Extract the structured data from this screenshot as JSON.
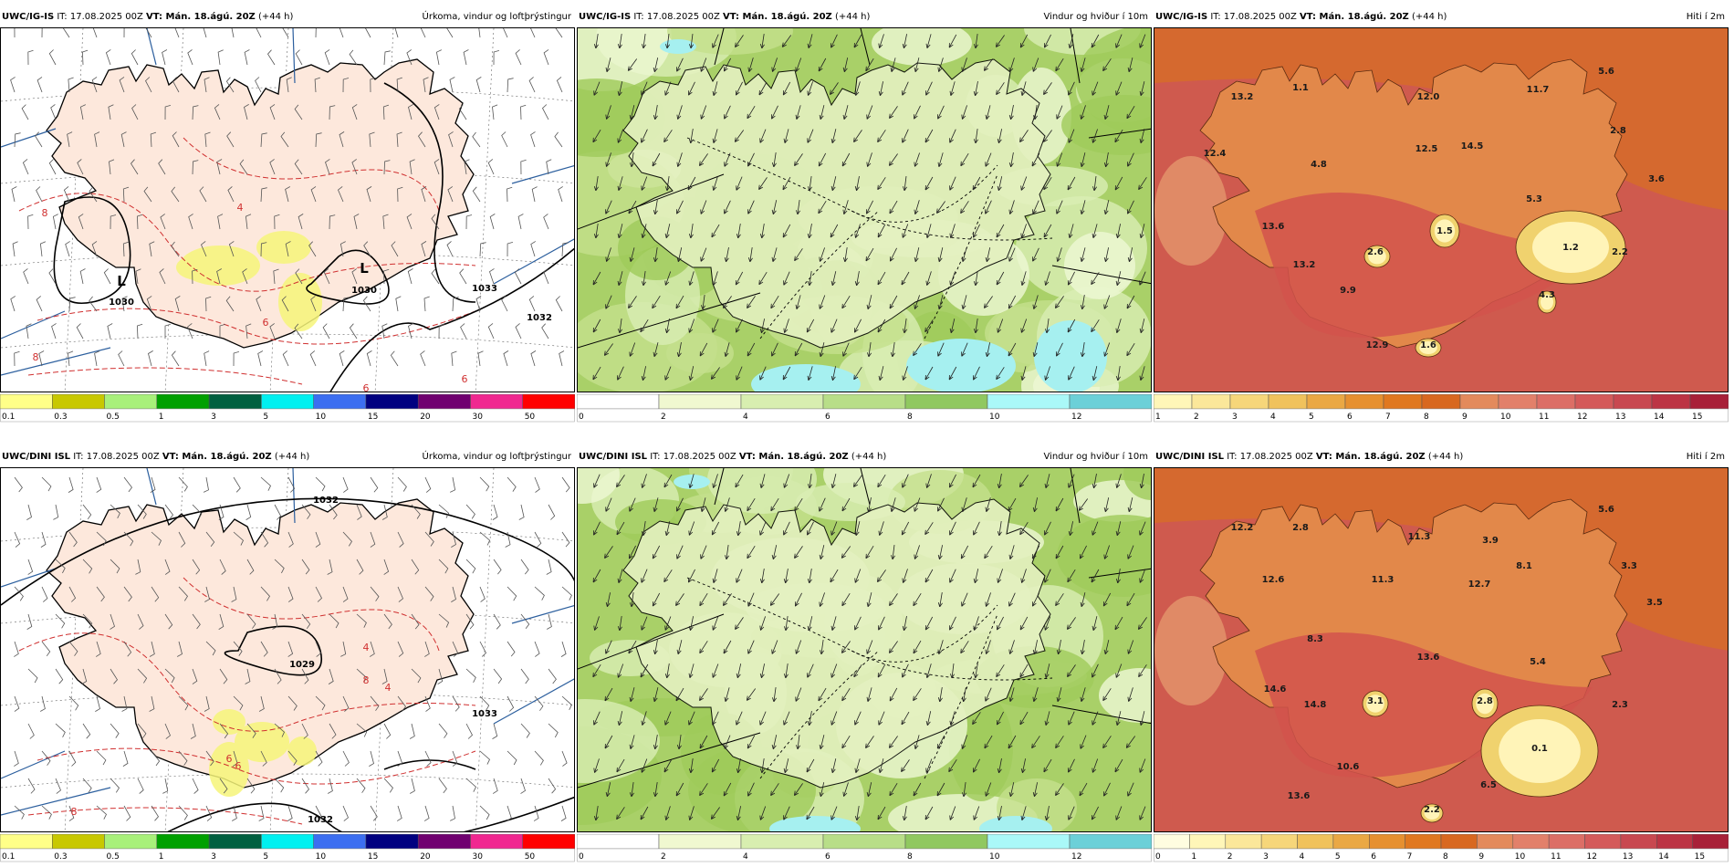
{
  "panels": [
    {
      "id": "igis-precip",
      "model": "UWC/IG-IS",
      "it_label": "IT: 17.08.2025 00Z",
      "vt_label": "VT: Mán. 18.ágú. 20Z",
      "lead": "(+44 h)",
      "title": "Úrkoma, vindur og loftþrýstingur",
      "kind": "precip",
      "pressure_labels": [
        "1030",
        "1030",
        "1033",
        "1032"
      ],
      "low_labels": [
        "L",
        "L"
      ],
      "temp_contour_labels": [
        "8",
        "4",
        "6",
        "6",
        "8",
        "6"
      ],
      "colorbar": {
        "ticks": [
          "0.1",
          "0.3",
          "0.5",
          "1",
          "3",
          "5",
          "10",
          "15",
          "20",
          "30",
          "50"
        ],
        "colors": [
          "#ffff88",
          "#c8c800",
          "#a8f07a",
          "#00a000",
          "#006040",
          "#00f0f0",
          "#3c6ef0",
          "#000080",
          "#700070",
          "#f02890",
          "#ff0000"
        ]
      }
    },
    {
      "id": "igis-wind",
      "model": "UWC/IG-IS",
      "it_label": "IT: 17.08.2025 00Z",
      "vt_label": "VT: Mán. 18.ágú. 20Z",
      "lead": "(+44 h)",
      "title": "Vindur og hviður í 10m",
      "kind": "wind",
      "colorbar": {
        "ticks": [
          "0",
          "2",
          "4",
          "6",
          "8",
          "10",
          "12"
        ],
        "colors": [
          "#ffffff",
          "#f0f8d0",
          "#d8eeb0",
          "#b8de88",
          "#90c860",
          "#aaf8f8",
          "#6cd0d8"
        ]
      }
    },
    {
      "id": "igis-temp",
      "model": "UWC/IG-IS",
      "it_label": "IT: 17.08.2025 00Z",
      "vt_label": "VT: Mán. 18.ágú. 20Z",
      "lead": "(+44 h)",
      "title": "Hiti í 2m",
      "kind": "temp",
      "values": [
        "13.2",
        "1.1",
        "12.0",
        "11.7",
        "5.6",
        "12.4",
        "4.8",
        "12.5",
        "14.5",
        "2.8",
        "3.6",
        "13.6",
        "5.3",
        "1.5",
        "2.6",
        "1.2",
        "2.2",
        "13.2",
        "9.9",
        "4.3",
        "12.9",
        "1.6"
      ],
      "colorbar": {
        "ticks": [
          "1",
          "2",
          "3",
          "4",
          "5",
          "6",
          "7",
          "8",
          "9",
          "10",
          "11",
          "12",
          "13",
          "14",
          "15"
        ],
        "colors": [
          "#fff6b8",
          "#fbe79a",
          "#f6d67a",
          "#f0c25c",
          "#eaa844",
          "#e69030",
          "#e07820",
          "#d86820",
          "#e38a5c",
          "#e2806a",
          "#dc6e66",
          "#d45a5a",
          "#c84850",
          "#bc3444",
          "#a82038"
        ]
      }
    },
    {
      "id": "dini-precip",
      "model": "UWC/DINI ISL",
      "it_label": "IT: 17.08.2025 00Z",
      "vt_label": "VT: Mán. 18.ágú. 20Z",
      "lead": "(+44 h)",
      "title": "Úrkoma, vindur og loftþrýstingur",
      "kind": "precip",
      "pressure_labels": [
        "1032",
        "1029",
        "1033",
        "1032"
      ],
      "low_labels": [],
      "temp_contour_labels": [
        "4",
        "8",
        "6",
        "8",
        "6",
        "4"
      ],
      "colorbar": {
        "ticks": [
          "0.1",
          "0.3",
          "0.5",
          "1",
          "3",
          "5",
          "10",
          "15",
          "20",
          "30",
          "50"
        ],
        "colors": [
          "#ffff88",
          "#c8c800",
          "#a8f07a",
          "#00a000",
          "#006040",
          "#00f0f0",
          "#3c6ef0",
          "#000080",
          "#700070",
          "#f02890",
          "#ff0000"
        ]
      }
    },
    {
      "id": "dini-wind",
      "model": "UWC/DINI ISL",
      "it_label": "IT: 17.08.2025 00Z",
      "vt_label": "VT: Mán. 18.ágú. 20Z",
      "lead": "(+44 h)",
      "title": "Vindur og hviður í 10m",
      "kind": "wind",
      "colorbar": {
        "ticks": [
          "0",
          "2",
          "4",
          "6",
          "8",
          "10",
          "12"
        ],
        "colors": [
          "#ffffff",
          "#f0f8d0",
          "#d8eeb0",
          "#b8de88",
          "#90c860",
          "#aaf8f8",
          "#6cd0d8"
        ]
      }
    },
    {
      "id": "dini-temp",
      "model": "UWC/DINI ISL",
      "it_label": "IT: 17.08.2025 00Z",
      "vt_label": "VT: Mán. 18.ágú. 20Z",
      "lead": "(+44 h)",
      "title": "Hiti í 2m",
      "kind": "temp",
      "values": [
        "12.2",
        "2.8",
        "11.3",
        "3.9",
        "5.6",
        "12.6",
        "11.3",
        "12.7",
        "8.1",
        "3.3",
        "8.3",
        "3.5",
        "13.6",
        "5.4",
        "14.6",
        "3.1",
        "2.8",
        "2.3",
        "14.8",
        "0.1",
        "10.6",
        "6.5",
        "13.6",
        "2.2"
      ],
      "colorbar": {
        "ticks": [
          "0",
          "1",
          "2",
          "3",
          "4",
          "5",
          "6",
          "7",
          "8",
          "9",
          "10",
          "11",
          "12",
          "13",
          "14",
          "15"
        ],
        "colors": [
          "#fffde0",
          "#fff6b8",
          "#fbe79a",
          "#f6d67a",
          "#f0c25c",
          "#eaa844",
          "#e69030",
          "#e07820",
          "#d86820",
          "#e38a5c",
          "#e2806a",
          "#dc6e66",
          "#d45a5a",
          "#c84850",
          "#bc3444",
          "#a82038"
        ]
      }
    }
  ]
}
